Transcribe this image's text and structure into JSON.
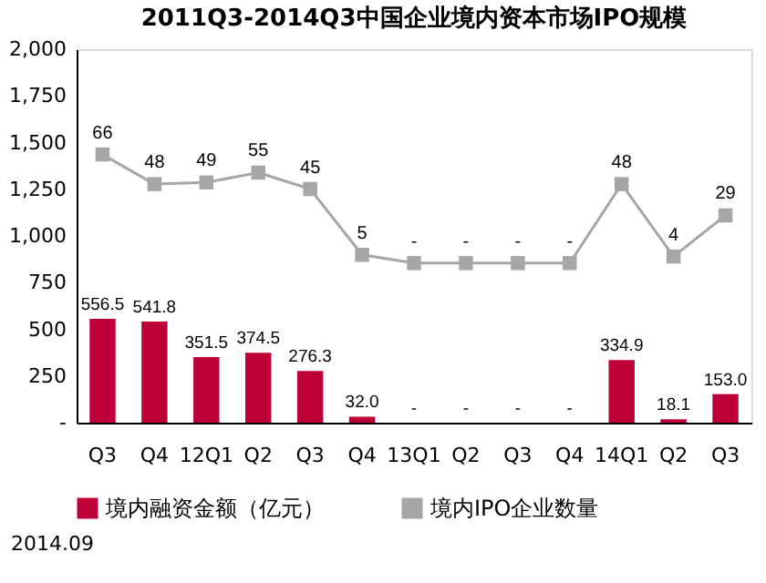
{
  "chart_data": {
    "type": "bar",
    "title": "2011Q3-2014Q3中国企业境内资本市场IPO规模",
    "categories": [
      "Q3",
      "Q4",
      "12Q1",
      "Q2",
      "Q3",
      "Q4",
      "13Q1",
      "Q2",
      "Q3",
      "Q4",
      "14Q1",
      "Q2",
      "Q3"
    ],
    "series": [
      {
        "name": "境内融资金额（亿元）",
        "color": "#be0039",
        "values": [
          556.5,
          541.8,
          351.5,
          374.5,
          276.3,
          32.0,
          0,
          0,
          0,
          0,
          334.9,
          18.1,
          153.0
        ],
        "value_labels": [
          "556.5",
          "541.8",
          "351.5",
          "374.5",
          "276.3",
          "32.0",
          "-",
          "-",
          "-",
          "-",
          "334.9",
          "18.1",
          "153.0"
        ]
      },
      {
        "name": "境内IPO企业数量",
        "type": "line",
        "axis": "y2",
        "color": "#a6a6a6",
        "marker": "square",
        "values": [
          66,
          48,
          49,
          55,
          45,
          5,
          0,
          0,
          0,
          0,
          48,
          4,
          29
        ],
        "value_labels": [
          "66",
          "48",
          "49",
          "55",
          "45",
          "5",
          "-",
          "-",
          "-",
          "-",
          "48",
          "4",
          "29"
        ]
      }
    ],
    "ylim": [
      0,
      2000
    ],
    "yticks": [
      {
        "value": 0,
        "label": "-"
      },
      {
        "value": 250,
        "label": "250"
      },
      {
        "value": 500,
        "label": "500"
      },
      {
        "value": 750,
        "label": "750"
      },
      {
        "value": 1000,
        "label": "1,000"
      },
      {
        "value": 1250,
        "label": "1,250"
      },
      {
        "value": 1500,
        "label": "1,500"
      },
      {
        "value": 1750,
        "label": "1,750"
      },
      {
        "value": 2000,
        "label": "2,000"
      }
    ],
    "y2lim": [
      -97,
      130
    ],
    "grid": false,
    "legend": "bottom",
    "annotations": [
      "2014.09"
    ]
  }
}
